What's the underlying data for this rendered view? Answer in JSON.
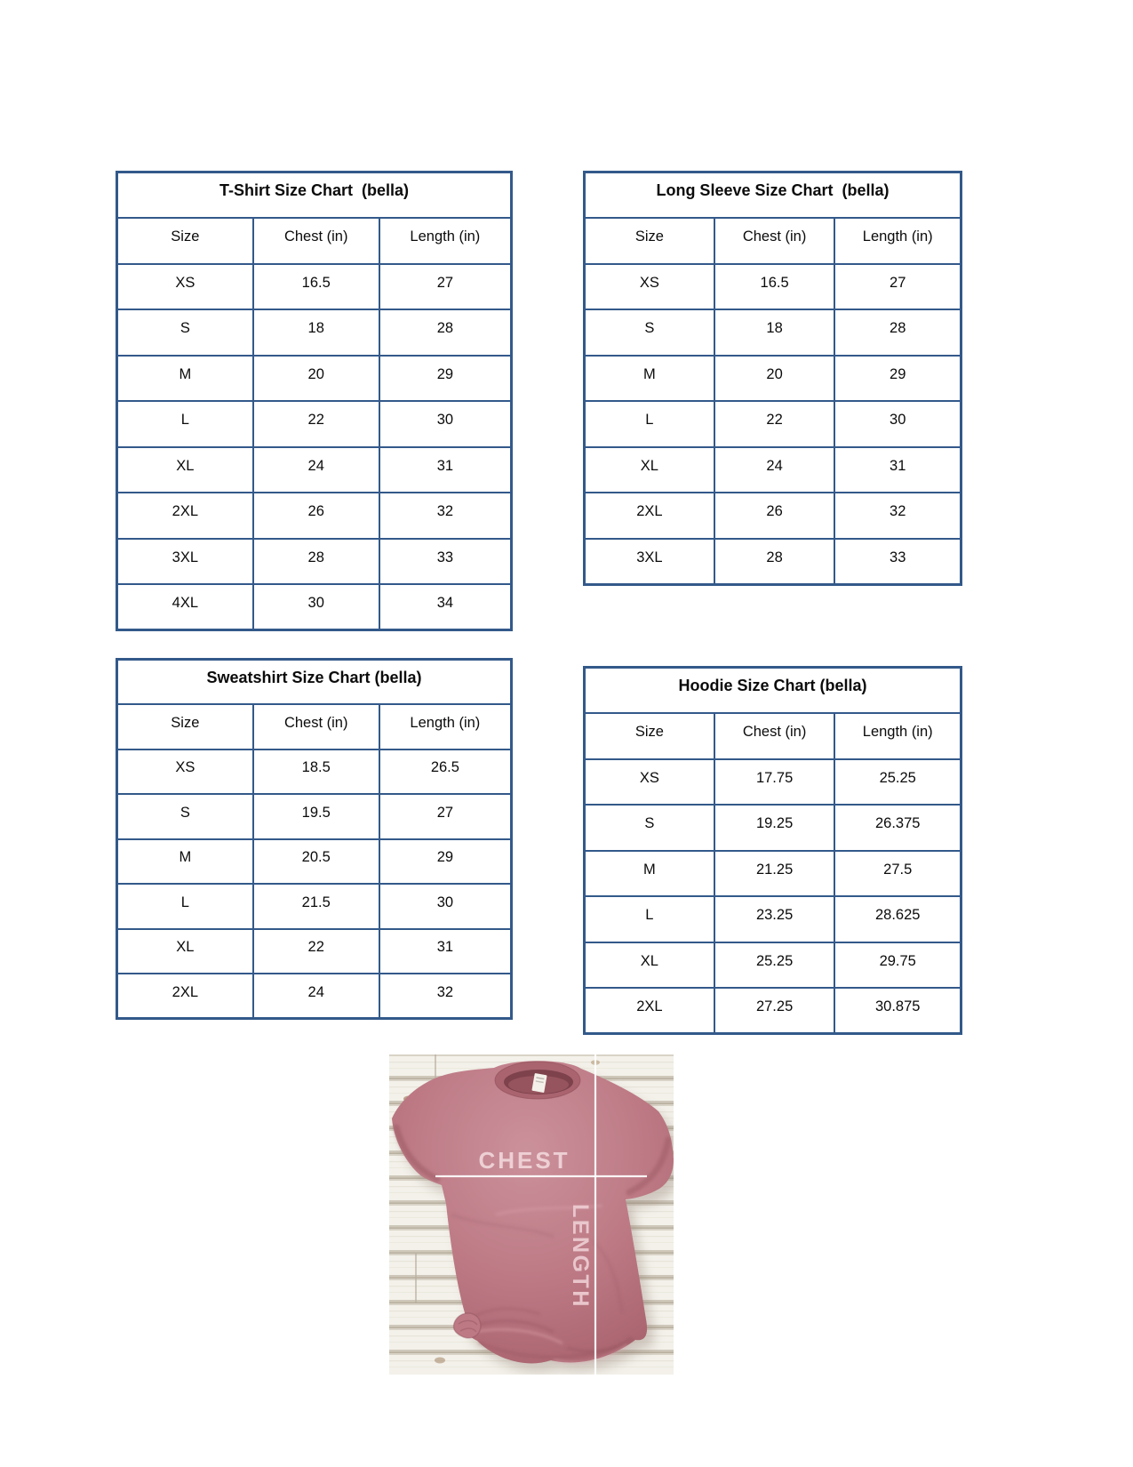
{
  "document": {
    "background": "#ffffff"
  },
  "tables": [
    {
      "id": "tshirt",
      "title": "T-Shirt Size Chart  (bella)",
      "columns": [
        "Size",
        "Chest (in)",
        "Length (in)"
      ],
      "rows": [
        [
          "XS",
          "16.5",
          "27"
        ],
        [
          "S",
          "18",
          "28"
        ],
        [
          "M",
          "20",
          "29"
        ],
        [
          "L",
          "22",
          "30"
        ],
        [
          "XL",
          "24",
          "31"
        ],
        [
          "2XL",
          "26",
          "32"
        ],
        [
          "3XL",
          "28",
          "33"
        ],
        [
          "4XL",
          "30",
          "34"
        ]
      ]
    },
    {
      "id": "long-sleeve",
      "title": "Long Sleeve Size Chart  (bella)",
      "columns": [
        "Size",
        "Chest (in)",
        "Length (in)"
      ],
      "rows": [
        [
          "XS",
          "16.5",
          "27"
        ],
        [
          "S",
          "18",
          "28"
        ],
        [
          "M",
          "20",
          "29"
        ],
        [
          "L",
          "22",
          "30"
        ],
        [
          "XL",
          "24",
          "31"
        ],
        [
          "2XL",
          "26",
          "32"
        ],
        [
          "3XL",
          "28",
          "33"
        ]
      ]
    },
    {
      "id": "sweatshirt",
      "title": "Sweatshirt Size Chart (bella)",
      "columns": [
        "Size",
        "Chest (in)",
        "Length (in)"
      ],
      "rows": [
        [
          "XS",
          "18.5",
          "26.5"
        ],
        [
          "S",
          "19.5",
          "27"
        ],
        [
          "M",
          "20.5",
          "29"
        ],
        [
          "L",
          "21.5",
          "30"
        ],
        [
          "XL",
          "22",
          "31"
        ],
        [
          "2XL",
          "24",
          "32"
        ]
      ]
    },
    {
      "id": "hoodie",
      "title": "Hoodie Size Chart (bella)",
      "columns": [
        "Size",
        "Chest (in)",
        "Length (in)"
      ],
      "rows": [
        [
          "XS",
          "17.75",
          "25.25"
        ],
        [
          "S",
          "19.25",
          "26.375"
        ],
        [
          "M",
          "21.25",
          "27.5"
        ],
        [
          "L",
          "23.25",
          "28.625"
        ],
        [
          "XL",
          "25.25",
          "29.75"
        ],
        [
          "2XL",
          "27.25",
          "30.875"
        ]
      ]
    }
  ],
  "photo": {
    "chest_label": "CHEST",
    "length_label": "LENGTH",
    "shirt_color": "#bd7a85",
    "line_color": "#ffffff"
  },
  "colors": {
    "table_border": "#33598a",
    "text_color": "#0b0b0b"
  }
}
